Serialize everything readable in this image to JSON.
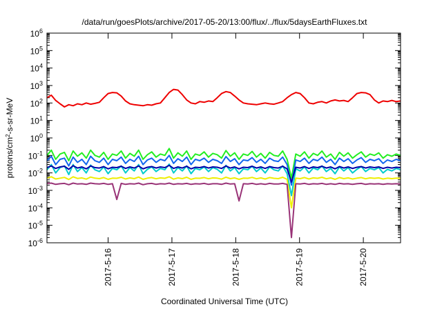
{
  "chart_data": {
    "type": "line",
    "title": "/data/run/goesPlots/archive/2017-05-20/13:00/flux/../flux/5daysEarthFluxes.txt",
    "xlabel": "Coordinated Universal Time (UTC)",
    "ylabel": {
      "prefix": "protons/cm",
      "sup": "2",
      "suffix": "-s-sr-MeV"
    },
    "y_scale": "log",
    "ylim": [
      1e-06,
      1000000.0
    ],
    "y_ticks": [
      {
        "value": 1e-06,
        "base": "10",
        "exp": "-6"
      },
      {
        "value": 1e-05,
        "base": "10",
        "exp": "-5"
      },
      {
        "value": 0.0001,
        "base": "10",
        "exp": "-4"
      },
      {
        "value": 0.001,
        "base": "10",
        "exp": "-3"
      },
      {
        "value": 0.01,
        "base": "10",
        "exp": "-2"
      },
      {
        "value": 0.1,
        "base": "10",
        "exp": "-1"
      },
      {
        "value": 1,
        "base": "10",
        "exp": "0"
      },
      {
        "value": 10,
        "base": "10",
        "exp": "1"
      },
      {
        "value": 100,
        "base": "10",
        "exp": "2"
      },
      {
        "value": 1000,
        "base": "10",
        "exp": "3"
      },
      {
        "value": 10000,
        "base": "10",
        "exp": "4"
      },
      {
        "value": 100000,
        "base": "10",
        "exp": "5"
      },
      {
        "value": 1000000,
        "base": "10",
        "exp": "6"
      }
    ],
    "xlim": [
      "2017-05-15 01:00",
      "2017-05-20 14:00"
    ],
    "x_ticks": [
      "2017-5-16",
      "2017-5-17",
      "2017-5-18",
      "2017-5-19",
      "2017-5-20"
    ],
    "grid": false,
    "legend": "none",
    "series": [
      {
        "color": "#ee0000",
        "values": [
          200,
          280,
          140,
          90,
          60,
          80,
          70,
          90,
          80,
          100,
          85,
          95,
          110,
          200,
          350,
          400,
          380,
          250,
          130,
          90,
          80,
          75,
          70,
          80,
          75,
          90,
          100,
          200,
          400,
          600,
          550,
          300,
          150,
          100,
          90,
          120,
          110,
          130,
          120,
          200,
          350,
          450,
          400,
          250,
          150,
          100,
          90,
          85,
          80,
          90,
          100,
          90,
          85,
          100,
          120,
          200,
          300,
          400,
          350,
          200,
          100,
          90,
          110,
          120,
          100,
          130,
          150,
          130,
          140,
          120,
          200,
          350,
          400,
          380,
          300,
          150,
          100,
          130,
          120,
          140,
          120,
          130
        ]
      },
      {
        "color": "#22ee22",
        "values": [
          0.1,
          0.2,
          0.06,
          0.12,
          0.15,
          0.05,
          0.18,
          0.09,
          0.14,
          0.07,
          0.2,
          0.1,
          0.08,
          0.15,
          0.06,
          0.12,
          0.1,
          0.18,
          0.07,
          0.13,
          0.09,
          0.2,
          0.06,
          0.11,
          0.16,
          0.08,
          0.12,
          0.1,
          0.25,
          0.07,
          0.14,
          0.09,
          0.18,
          0.06,
          0.12,
          0.1,
          0.16,
          0.08,
          0.13,
          0.11,
          0.07,
          0.19,
          0.09,
          0.14,
          0.06,
          0.12,
          0.1,
          0.17,
          0.08,
          0.13,
          0.07,
          0.15,
          0.1,
          0.09,
          0.18,
          0.06,
          0.005,
          0.12,
          0.09,
          0.16,
          0.07,
          0.13,
          0.1,
          0.18,
          0.08,
          0.12,
          0.06,
          0.15,
          0.09,
          0.14,
          0.07,
          0.11,
          0.16,
          0.08,
          0.12,
          0.1,
          0.14,
          0.07,
          0.11,
          0.09,
          0.12,
          0.1
        ]
      },
      {
        "color": "#1166ee",
        "values": [
          0.05,
          0.09,
          0.03,
          0.06,
          0.07,
          0.025,
          0.08,
          0.04,
          0.06,
          0.03,
          0.09,
          0.05,
          0.04,
          0.07,
          0.03,
          0.06,
          0.05,
          0.08,
          0.035,
          0.06,
          0.045,
          0.09,
          0.03,
          0.055,
          0.07,
          0.04,
          0.06,
          0.05,
          0.1,
          0.035,
          0.065,
          0.045,
          0.08,
          0.03,
          0.06,
          0.05,
          0.07,
          0.04,
          0.06,
          0.05,
          0.035,
          0.085,
          0.045,
          0.065,
          0.03,
          0.055,
          0.05,
          0.075,
          0.04,
          0.06,
          0.035,
          0.07,
          0.05,
          0.045,
          0.08,
          0.03,
          0.002,
          0.055,
          0.045,
          0.07,
          0.035,
          0.06,
          0.05,
          0.08,
          0.04,
          0.06,
          0.03,
          0.07,
          0.045,
          0.065,
          0.035,
          0.055,
          0.075,
          0.04,
          0.06,
          0.05,
          0.065,
          0.035,
          0.055,
          0.045,
          0.06,
          0.05
        ]
      },
      {
        "color": "#00cccc",
        "values": [
          0.015,
          0.03,
          0.01,
          0.02,
          0.025,
          0.008,
          0.03,
          0.012,
          0.02,
          0.01,
          0.028,
          0.015,
          0.012,
          0.022,
          0.009,
          0.018,
          0.015,
          0.025,
          0.01,
          0.02,
          0.013,
          0.03,
          0.009,
          0.016,
          0.022,
          0.012,
          0.018,
          0.015,
          0.032,
          0.01,
          0.02,
          0.013,
          0.025,
          0.009,
          0.018,
          0.015,
          0.022,
          0.012,
          0.02,
          0.016,
          0.01,
          0.027,
          0.013,
          0.02,
          0.009,
          0.017,
          0.015,
          0.024,
          0.012,
          0.019,
          0.01,
          0.022,
          0.015,
          0.013,
          0.025,
          0.009,
          0.0005,
          0.017,
          0.013,
          0.022,
          0.01,
          0.019,
          0.015,
          0.025,
          0.012,
          0.018,
          0.009,
          0.022,
          0.013,
          0.02,
          0.01,
          0.016,
          0.023,
          0.012,
          0.018,
          0.015,
          0.02,
          0.01,
          0.016,
          0.013,
          0.018,
          0.015
        ]
      },
      {
        "color": "#0000aa",
        "values": [
          0.02,
          0.025,
          0.018,
          0.022,
          0.024,
          0.016,
          0.026,
          0.019,
          0.022,
          0.017,
          0.025,
          0.02,
          0.019,
          0.023,
          0.017,
          0.021,
          0.02,
          0.024,
          0.018,
          0.022,
          0.019,
          0.025,
          0.017,
          0.021,
          0.023,
          0.019,
          0.022,
          0.02,
          0.027,
          0.018,
          0.022,
          0.019,
          0.024,
          0.017,
          0.021,
          0.02,
          0.023,
          0.019,
          0.022,
          0.021,
          0.018,
          0.025,
          0.019,
          0.022,
          0.017,
          0.021,
          0.02,
          0.024,
          0.019,
          0.022,
          0.018,
          0.023,
          0.02,
          0.019,
          0.024,
          0.017,
          0.003,
          0.021,
          0.019,
          0.023,
          0.018,
          0.022,
          0.02,
          0.024,
          0.019,
          0.022,
          0.017,
          0.023,
          0.019,
          0.022,
          0.018,
          0.021,
          0.023,
          0.019,
          0.022,
          0.02,
          0.022,
          0.018,
          0.021,
          0.019,
          0.021,
          0.02
        ]
      },
      {
        "color": "#eeee00",
        "values": [
          0.005,
          0.006,
          0.0045,
          0.005,
          0.0055,
          0.0042,
          0.006,
          0.0048,
          0.0052,
          0.0044,
          0.0058,
          0.005,
          0.0047,
          0.0054,
          0.0043,
          0.005,
          0.0049,
          0.0056,
          0.0045,
          0.0052,
          0.0047,
          0.0058,
          0.0043,
          0.005,
          0.0054,
          0.0046,
          0.0052,
          0.0049,
          0.006,
          0.0044,
          0.0052,
          0.0047,
          0.0056,
          0.0043,
          0.005,
          0.0049,
          0.0054,
          0.0046,
          0.0052,
          0.005,
          0.0044,
          0.0057,
          0.0047,
          0.0052,
          0.0043,
          0.005,
          0.0049,
          0.0055,
          0.0046,
          0.0052,
          0.0045,
          0.0054,
          0.0049,
          0.0047,
          0.0056,
          0.0043,
          0.0001,
          0.005,
          0.0047,
          0.0054,
          0.0045,
          0.0052,
          0.0049,
          0.0056,
          0.0046,
          0.0052,
          0.0043,
          0.0054,
          0.0047,
          0.0052,
          0.0045,
          0.005,
          0.0054,
          0.0046,
          0.0052,
          0.0049,
          0.0052,
          0.0045,
          0.005,
          0.0047,
          0.005,
          0.0049
        ]
      },
      {
        "color": "#993377",
        "values": [
          0.0025,
          0.0026,
          0.0022,
          0.0024,
          0.0025,
          0.0021,
          0.0026,
          0.0023,
          0.0024,
          0.0022,
          0.0026,
          0.0024,
          0.0023,
          0.0025,
          0.0022,
          0.0024,
          0.0003,
          0.0025,
          0.0022,
          0.0024,
          0.0023,
          0.0026,
          0.0021,
          0.0024,
          0.0025,
          0.0022,
          0.0024,
          0.0023,
          0.0026,
          0.0022,
          0.0024,
          0.0023,
          0.0025,
          0.0022,
          0.0024,
          0.0023,
          0.0025,
          0.0022,
          0.0024,
          0.0024,
          0.0022,
          0.0026,
          0.0023,
          0.0024,
          0.00025,
          0.0024,
          0.0023,
          0.0025,
          0.0022,
          0.0024,
          0.0022,
          0.0025,
          0.0023,
          0.0023,
          0.0025,
          0.0022,
          2e-06,
          0.0024,
          0.0023,
          0.0025,
          0.0022,
          0.0024,
          0.0023,
          0.0025,
          0.0022,
          0.0024,
          0.0022,
          0.0025,
          0.0023,
          0.0024,
          0.0022,
          0.0024,
          0.0025,
          0.0022,
          0.0024,
          0.0023,
          0.0024,
          0.0022,
          0.0024,
          0.0023,
          0.0024,
          0.0023
        ]
      }
    ]
  }
}
